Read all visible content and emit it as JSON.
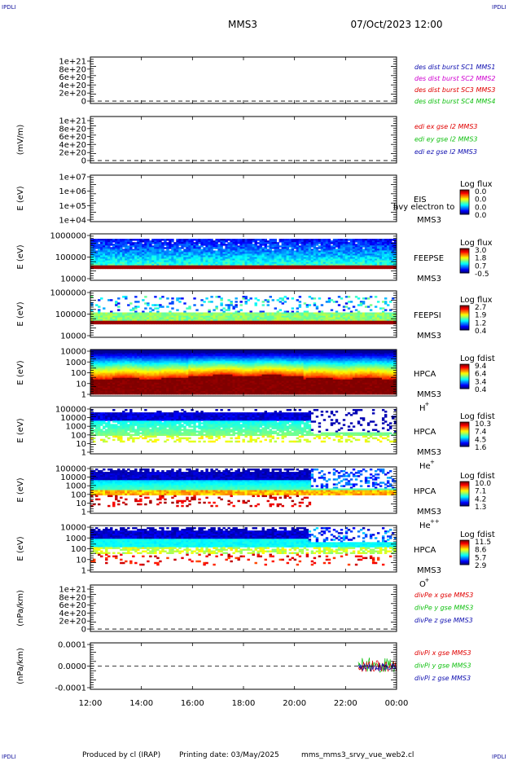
{
  "header": {
    "corner_label": "IPDLI",
    "spacecraft": "MMS3",
    "datetime": "07/Oct/2023 12:00"
  },
  "footer": {
    "produced_by": "Produced by cl (IRAP)",
    "printing_date": "Printing date: 03/May/2025",
    "script_name": "mms_mms3_srvy_vue_web2.cl"
  },
  "colors": {
    "red": "#e00000",
    "magenta": "#d000d0",
    "green": "#10c010",
    "blue": "#1010b0",
    "ink": "#000000"
  },
  "chart_data": {
    "type": "multi-panel time series / spectrogram",
    "xaxis": {
      "ticks": [
        "12:00",
        "14:00",
        "16:00",
        "18:00",
        "20:00",
        "22:00",
        "00:00"
      ],
      "range_hours": [
        12,
        24
      ]
    },
    "panels": [
      {
        "id": "des-dist",
        "kind": "line",
        "ylabel": "",
        "ticks": [
          "1e+21",
          "8e+20",
          "6e+20",
          "4e+20",
          "2e+20",
          "0"
        ],
        "zero_dashed": true,
        "legend": [
          {
            "text": "des dist burst SC1 MMS1",
            "color": "#1010b0"
          },
          {
            "text": "des dist burst SC2 MMS2",
            "color": "#d000d0"
          },
          {
            "text": "des dist burst SC3 MMS3",
            "color": "#e00000"
          },
          {
            "text": "des dist burst SC4 MMS4",
            "color": "#10c010"
          }
        ]
      },
      {
        "id": "edi",
        "kind": "line",
        "ylabel": "(mV/m)",
        "ticks": [
          "1e+21",
          "8e+20",
          "6e+20",
          "4e+20",
          "2e+20",
          "0"
        ],
        "zero_dashed": true,
        "legend": [
          {
            "text": "edi ex gse l2 MMS3",
            "color": "#e00000"
          },
          {
            "text": "edi ey gse l2 MMS3",
            "color": "#10c010"
          },
          {
            "text": "edi ez gse l2 MMS3",
            "color": "#1010b0"
          }
        ]
      },
      {
        "id": "eis",
        "kind": "spec",
        "ylabel": "E (eV)",
        "ticks": [
          "1e+07",
          "1e+06",
          "1e+05",
          "1e+04"
        ],
        "instrument": "EIS",
        "subtitle": "hvy electron to",
        "sc": "MMS3",
        "cb_title": "Log flux",
        "cb_values": [
          "0.0",
          "0.0",
          "0.0",
          "0.0"
        ],
        "fill": "none"
      },
      {
        "id": "feepse",
        "kind": "spec",
        "ylabel": "E (eV)",
        "ticks": [
          "1000000",
          "100000",
          "10000"
        ],
        "instrument": "FEEPSE",
        "sc": "MMS3",
        "cb_title": "Log flux",
        "cb_values": [
          "3.0",
          "1.8",
          "0.7",
          "-0.5"
        ],
        "fill": "feepse"
      },
      {
        "id": "feepsi",
        "kind": "spec",
        "ylabel": "E (eV)",
        "ticks": [
          "1000000",
          "100000",
          "10000"
        ],
        "instrument": "FEEPSI",
        "sc": "MMS3",
        "cb_title": "Log flux",
        "cb_values": [
          "2.7",
          "1.9",
          "1.2",
          "0.4"
        ],
        "fill": "feepsi"
      },
      {
        "id": "hpca-h",
        "kind": "spec",
        "ylabel": "E (eV)",
        "ticks": [
          "10000",
          "1000",
          "100",
          "10",
          "1"
        ],
        "instrument": "HPCA",
        "sc": "MMS3",
        "species": "H",
        "charge": "+",
        "cb_title": "Log fdist",
        "cb_values": [
          "9.4",
          "6.4",
          "3.4",
          "0.4"
        ],
        "fill": "hpca_h"
      },
      {
        "id": "hpca-he",
        "kind": "spec",
        "ylabel": "E (eV)",
        "ticks": [
          "100000",
          "10000",
          "1000",
          "100",
          "10",
          "1"
        ],
        "instrument": "HPCA",
        "sc": "MMS3",
        "species": "He",
        "charge": "+",
        "cb_title": "Log fdist",
        "cb_values": [
          "10.3",
          "7.4",
          "4.5",
          "1.6"
        ],
        "fill": "hpca_he"
      },
      {
        "id": "hpca-he2",
        "kind": "spec",
        "ylabel": "E (eV)",
        "ticks": [
          "100000",
          "10000",
          "1000",
          "100",
          "10",
          "1"
        ],
        "instrument": "HPCA",
        "sc": "MMS3",
        "species": "He",
        "charge": "++",
        "cb_title": "Log fdist",
        "cb_values": [
          "10.0",
          "7.1",
          "4.2",
          "1.3"
        ],
        "fill": "hpca_he2"
      },
      {
        "id": "hpca-o",
        "kind": "spec",
        "ylabel": "E (eV)",
        "ticks": [
          "10000",
          "1000",
          "100",
          "10",
          "1"
        ],
        "instrument": "HPCA",
        "sc": "MMS3",
        "species": "O",
        "charge": "+",
        "cb_title": "Log fdist",
        "cb_values": [
          "11.5",
          "8.6",
          "5.7",
          "2.9"
        ],
        "fill": "hpca_o"
      },
      {
        "id": "divpe",
        "kind": "line",
        "ylabel": "(nPa/km)",
        "ticks": [
          "1e+21",
          "8e+20",
          "6e+20",
          "4e+20",
          "2e+20",
          "0"
        ],
        "zero_dashed": true,
        "legend": [
          {
            "text": "divPe x gse MMS3",
            "color": "#e00000"
          },
          {
            "text": "divPe y gse MMS3",
            "color": "#10c010"
          },
          {
            "text": "divPe z gse MMS3",
            "color": "#1010b0"
          }
        ]
      },
      {
        "id": "divpi",
        "kind": "line",
        "ylabel": "(nPa/km)",
        "ticks": [
          "0.0001",
          "0.0000",
          "-0.0001"
        ],
        "zero_dashed": true,
        "data_start_hour": 22.5,
        "legend": [
          {
            "text": "divPi x gse MMS3",
            "color": "#e00000"
          },
          {
            "text": "divPi y gse MMS3",
            "color": "#10c010"
          },
          {
            "text": "divPi z gse MMS3",
            "color": "#1010b0"
          }
        ]
      }
    ]
  }
}
